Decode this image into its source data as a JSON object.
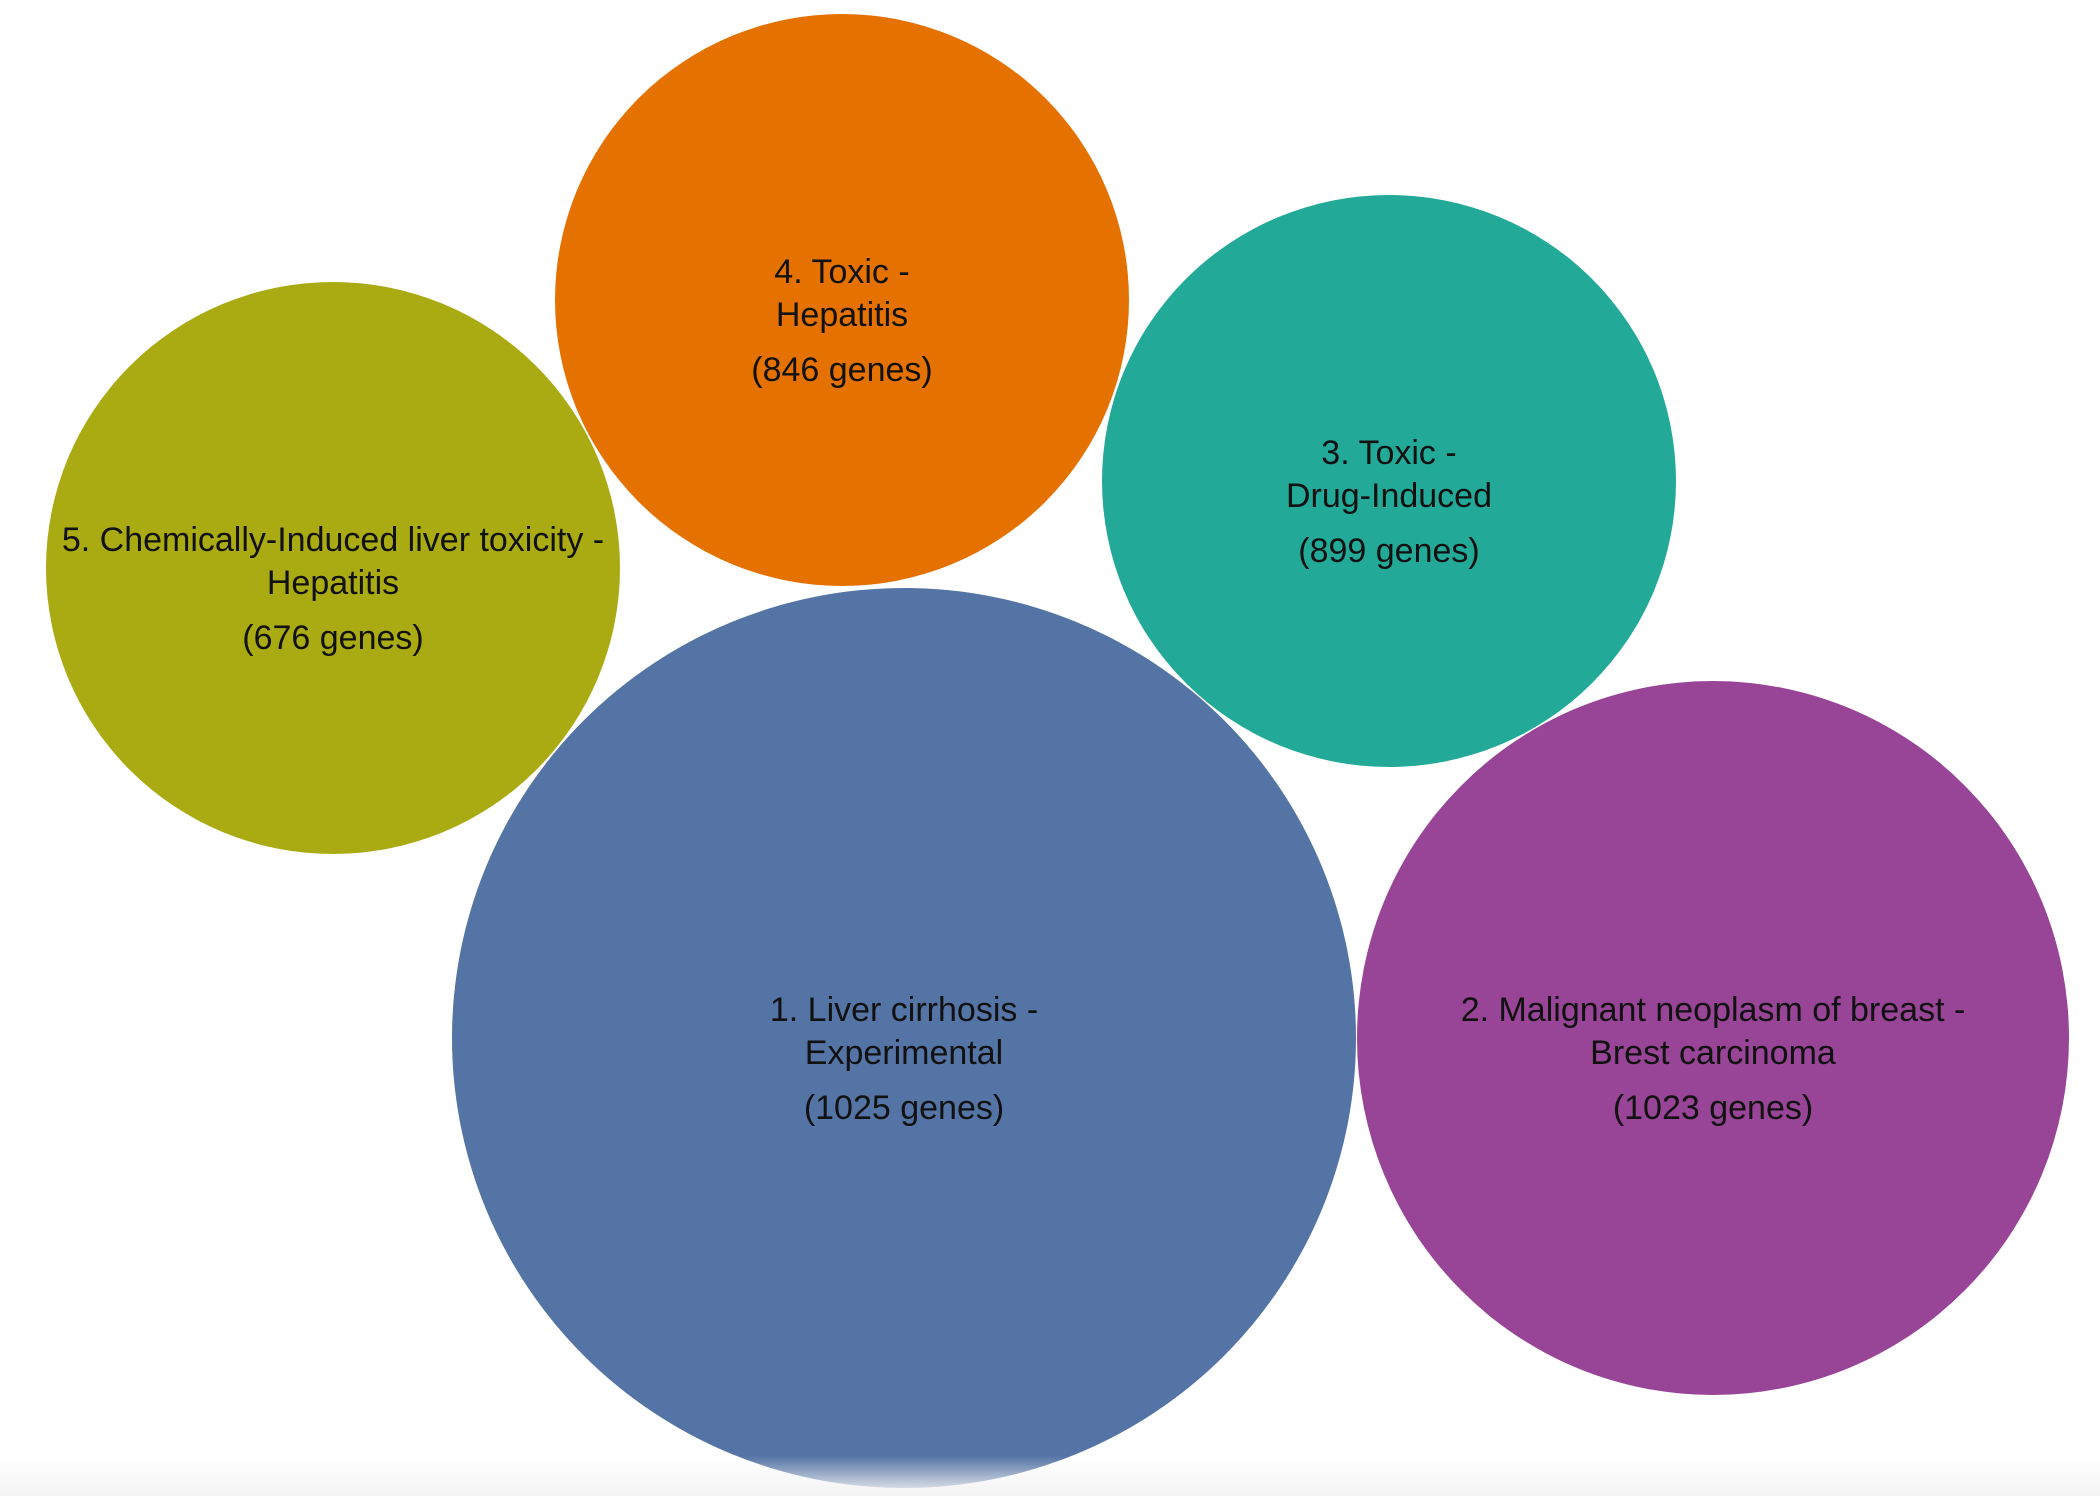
{
  "chart_data": {
    "type": "bubble",
    "bubbles": [
      {
        "rank": 1,
        "line1": "1. Liver cirrhosis -",
        "line2": "Experimental",
        "count_label": "(1025 genes)",
        "genes": 1025,
        "color": "#5474a5"
      },
      {
        "rank": 2,
        "line1": "2. Malignant neoplasm of breast -",
        "line2": "Brest carcinoma",
        "count_label": "(1023 genes)",
        "genes": 1023,
        "color": "#984497"
      },
      {
        "rank": 3,
        "line1": "3. Toxic -",
        "line2": "Drug-Induced",
        "count_label": "(899 genes)",
        "genes": 899,
        "color": "#22a998"
      },
      {
        "rank": 4,
        "line1": "4. Toxic -",
        "line2": "Hepatitis",
        "count_label": "(846 genes)",
        "genes": 846,
        "color": "#e57200"
      },
      {
        "rank": 5,
        "line1": "5. Chemically-Induced liver toxicity -",
        "line2": "Hepatitis",
        "count_label": "(676 genes)",
        "genes": 676,
        "color": "#aaab13"
      }
    ]
  }
}
